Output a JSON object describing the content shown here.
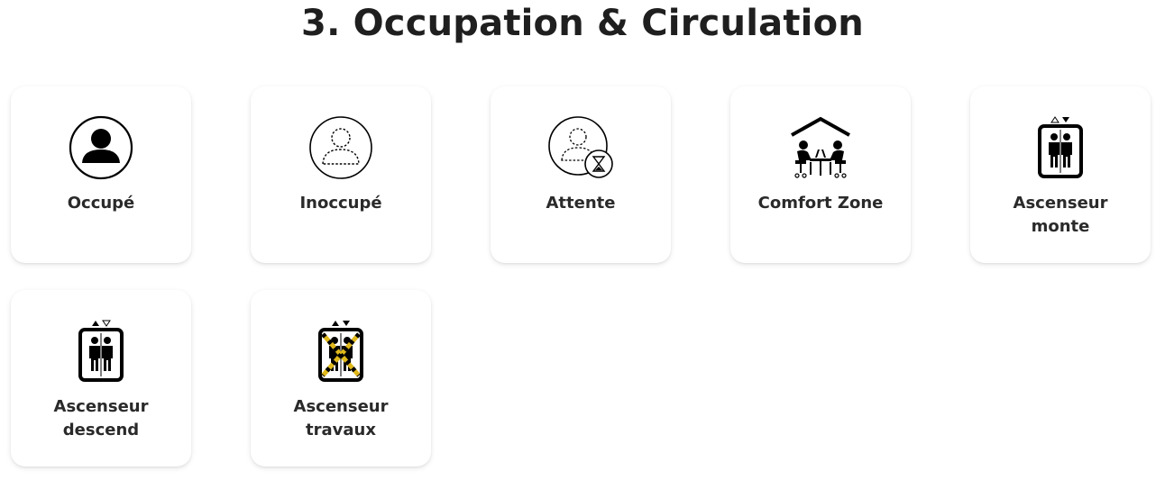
{
  "section": {
    "title": "3. Occupation & Circulation"
  },
  "cards": [
    {
      "name": "occupied",
      "label": [
        "Occupé"
      ],
      "icon": "occupied-person-icon"
    },
    {
      "name": "unoccupied",
      "label": [
        "Inoccupé"
      ],
      "icon": "unoccupied-person-icon"
    },
    {
      "name": "waiting",
      "label": [
        "Attente"
      ],
      "icon": "waiting-hourglass-icon"
    },
    {
      "name": "comfort-zone",
      "label": [
        "Comfort Zone"
      ],
      "icon": "comfort-zone-meeting-icon"
    },
    {
      "name": "elevator-up",
      "label": [
        "Ascenseur",
        "monte"
      ],
      "icon": "elevator-up-icon"
    },
    {
      "name": "elevator-down",
      "label": [
        "Ascenseur",
        "descend"
      ],
      "icon": "elevator-down-icon"
    },
    {
      "name": "elevator-maintenance",
      "label": [
        "Ascenseur",
        "travaux"
      ],
      "icon": "elevator-maintenance-icon"
    }
  ],
  "colors": {
    "icon": "#000000",
    "warning_stripe": "#e0b81a",
    "label": "#2a2a2a"
  }
}
